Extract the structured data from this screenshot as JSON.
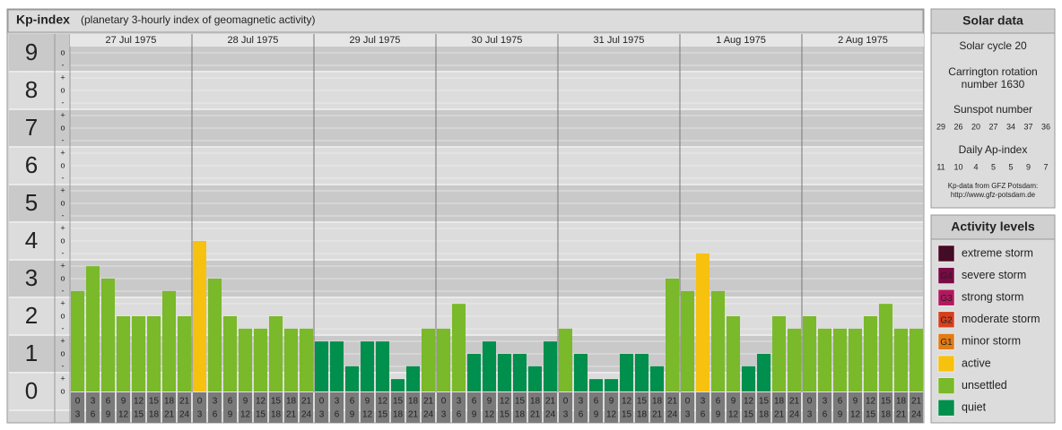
{
  "chart_data": {
    "type": "bar",
    "title": "Kp-index",
    "subtitle": "(planetary 3-hourly index of geomagnetic activity)",
    "ylim": [
      -0.5,
      9.5
    ],
    "yticks": [
      0,
      1,
      2,
      3,
      4,
      5,
      6,
      7,
      8,
      9
    ],
    "subdivision_labels": [
      "-",
      "o",
      "+"
    ],
    "time_slots": [
      {
        "start": "0",
        "end": "3"
      },
      {
        "start": "3",
        "end": "6"
      },
      {
        "start": "6",
        "end": "9"
      },
      {
        "start": "9",
        "end": "12"
      },
      {
        "start": "12",
        "end": "15"
      },
      {
        "start": "15",
        "end": "18"
      },
      {
        "start": "18",
        "end": "21"
      },
      {
        "start": "21",
        "end": "24"
      }
    ],
    "days": [
      {
        "date": "27 Jul 1975",
        "values": [
          2.67,
          3.33,
          3,
          2,
          2,
          2,
          2.67,
          2
        ],
        "colors": [
          "#7ab929",
          "#7ab929",
          "#7ab929",
          "#7ab929",
          "#7ab929",
          "#7ab929",
          "#7ab929",
          "#7ab929"
        ]
      },
      {
        "date": "28 Jul 1975",
        "values": [
          4,
          3,
          2,
          1.67,
          1.67,
          2,
          1.67,
          1.67
        ],
        "colors": [
          "#f7c10f",
          "#7ab929",
          "#7ab929",
          "#7ab929",
          "#7ab929",
          "#7ab929",
          "#7ab929",
          "#7ab929"
        ]
      },
      {
        "date": "29 Jul 1975",
        "values": [
          1.33,
          1.33,
          0.67,
          1.33,
          1.33,
          0.33,
          0.67,
          1.67
        ],
        "colors": [
          "#008f4c",
          "#008f4c",
          "#008f4c",
          "#008f4c",
          "#008f4c",
          "#008f4c",
          "#008f4c",
          "#7ab929"
        ]
      },
      {
        "date": "30 Jul 1975",
        "values": [
          1.67,
          2.33,
          1,
          1.33,
          1,
          1,
          0.67,
          1.33
        ],
        "colors": [
          "#7ab929",
          "#7ab929",
          "#008f4c",
          "#008f4c",
          "#008f4c",
          "#008f4c",
          "#008f4c",
          "#008f4c"
        ]
      },
      {
        "date": "31 Jul 1975",
        "values": [
          1.67,
          1,
          0.33,
          0.33,
          1,
          1,
          0.67,
          3
        ],
        "colors": [
          "#7ab929",
          "#008f4c",
          "#008f4c",
          "#008f4c",
          "#008f4c",
          "#008f4c",
          "#008f4c",
          "#7ab929"
        ]
      },
      {
        "date": "1 Aug 1975",
        "values": [
          2.67,
          3.67,
          2.67,
          2,
          0.67,
          1,
          2,
          1.67
        ],
        "colors": [
          "#7ab929",
          "#f7c10f",
          "#7ab929",
          "#7ab929",
          "#008f4c",
          "#008f4c",
          "#7ab929",
          "#7ab929"
        ]
      },
      {
        "date": "2 Aug 1975",
        "values": [
          2,
          1.67,
          1.67,
          1.67,
          2,
          2.33,
          1.67,
          1.67
        ],
        "colors": [
          "#7ab929",
          "#7ab929",
          "#7ab929",
          "#7ab929",
          "#7ab929",
          "#7ab929",
          "#7ab929",
          "#7ab929"
        ]
      }
    ]
  },
  "solar_data": {
    "title": "Solar data",
    "cycle": "Solar cycle 20",
    "rotation_line1": "Carrington rotation",
    "rotation_line2": "number 1630",
    "sunspot_title": "Sunspot number",
    "sunspot_values": [
      29,
      26,
      20,
      27,
      34,
      37,
      36
    ],
    "ap_title": "Daily Ap-index",
    "ap_values": [
      11,
      10,
      4,
      5,
      5,
      9,
      7
    ],
    "source_line1": "Kp-data from GFZ Potsdam:",
    "source_line2": "http://www.gfz-potsdam.de"
  },
  "activity_levels": {
    "title": "Activity levels",
    "items": [
      {
        "badge": "G5",
        "label": "extreme storm",
        "color": "#4a0825"
      },
      {
        "badge": "G4",
        "label": "severe storm",
        "color": "#7a0a44"
      },
      {
        "badge": "G3",
        "label": "strong storm",
        "color": "#b3185f"
      },
      {
        "badge": "G2",
        "label": "moderate storm",
        "color": "#d6401e"
      },
      {
        "badge": "G1",
        "label": "minor storm",
        "color": "#e27c14"
      },
      {
        "label": "active",
        "color": "#f7c10f"
      },
      {
        "label": "unsettled",
        "color": "#7ab929"
      },
      {
        "label": "quiet",
        "color": "#008f4c"
      }
    ]
  }
}
